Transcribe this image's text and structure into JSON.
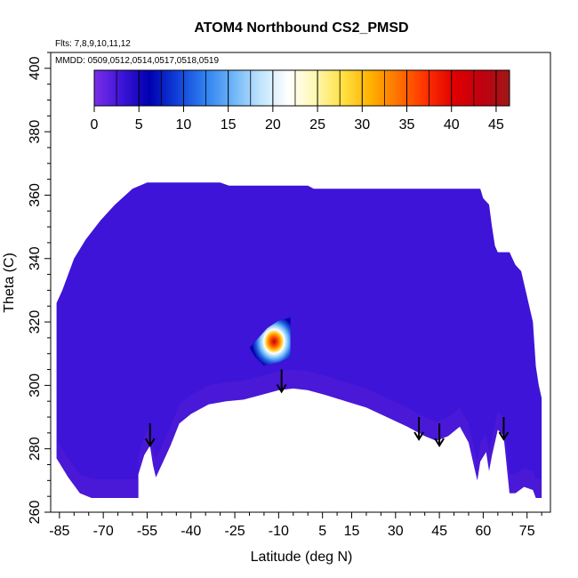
{
  "chart_data": {
    "type": "heatmap",
    "title": "ATOM4 Northbound CS2_PMSD",
    "subtitle_flights": "Flts: 7,8,9,10,11,12",
    "subtitle_dates": "MMDD: 0509,0512,0514,0517,0518,0519",
    "xlabel": "Latitude (deg N)",
    "ylabel": "Theta (C)",
    "xlim": [
      -88,
      83
    ],
    "ylim": [
      260,
      405
    ],
    "x_ticks": [
      -85,
      -70,
      -55,
      -40,
      -25,
      -10,
      5,
      15,
      30,
      45,
      60,
      75
    ],
    "x_tick_labels": [
      "-85",
      "-70",
      "-55",
      "-40",
      "-25",
      "-10",
      "5",
      "15",
      "30",
      "45",
      "60",
      "75"
    ],
    "y_ticks": [
      260,
      280,
      300,
      320,
      340,
      360,
      380,
      400
    ],
    "y_tick_labels": [
      "260",
      "280",
      "300",
      "320",
      "340",
      "360",
      "380",
      "400"
    ],
    "colorbar": {
      "range": [
        0,
        46.5
      ],
      "ticks": [
        0,
        5,
        10,
        15,
        20,
        25,
        30,
        35,
        40,
        45
      ],
      "tick_labels": [
        "0",
        "5",
        "10",
        "15",
        "20",
        "25",
        "30",
        "35",
        "40",
        "45"
      ],
      "colors": [
        "#7a2ee8",
        "#3d14d8",
        "#0000b0",
        "#1040d8",
        "#2f80f0",
        "#6cb4f8",
        "#c0e4fc",
        "#ffffff",
        "#fff8b0",
        "#ffe040",
        "#ffb000",
        "#ff7000",
        "#ff3000",
        "#e00000",
        "#c00010",
        "#a01818"
      ]
    },
    "background_value": 2,
    "domain_top": [
      {
        "lat": -86,
        "theta": 326
      },
      {
        "lat": -84,
        "theta": 330
      },
      {
        "lat": -80,
        "theta": 340
      },
      {
        "lat": -76,
        "theta": 346
      },
      {
        "lat": -71,
        "theta": 352
      },
      {
        "lat": -66,
        "theta": 357
      },
      {
        "lat": -60,
        "theta": 362
      },
      {
        "lat": -55,
        "theta": 364
      },
      {
        "lat": -30,
        "theta": 364
      },
      {
        "lat": -27,
        "theta": 363
      },
      {
        "lat": 0,
        "theta": 363
      },
      {
        "lat": 2,
        "theta": 362
      },
      {
        "lat": 59,
        "theta": 362
      },
      {
        "lat": 60,
        "theta": 359
      },
      {
        "lat": 62,
        "theta": 357
      },
      {
        "lat": 63,
        "theta": 350
      },
      {
        "lat": 64,
        "theta": 344
      },
      {
        "lat": 65,
        "theta": 342
      },
      {
        "lat": 69,
        "theta": 342
      },
      {
        "lat": 71,
        "theta": 338
      },
      {
        "lat": 73,
        "theta": 336
      },
      {
        "lat": 75,
        "theta": 328
      },
      {
        "lat": 77,
        "theta": 320
      },
      {
        "lat": 78,
        "theta": 306
      },
      {
        "lat": 79,
        "theta": 300
      },
      {
        "lat": 80,
        "theta": 296
      }
    ],
    "domain_bottom": [
      {
        "lat": -86,
        "theta": 277
      },
      {
        "lat": -82,
        "theta": 271
      },
      {
        "lat": -78,
        "theta": 266
      },
      {
        "lat": -74,
        "theta": 264.5
      },
      {
        "lat": -58,
        "theta": 264.5
      },
      {
        "lat": -58,
        "theta": 272
      },
      {
        "lat": -56,
        "theta": 278
      },
      {
        "lat": -54,
        "theta": 281
      },
      {
        "lat": -53,
        "theta": 275
      },
      {
        "lat": -52,
        "theta": 271
      },
      {
        "lat": -50,
        "theta": 275
      },
      {
        "lat": -47,
        "theta": 281
      },
      {
        "lat": -44,
        "theta": 288
      },
      {
        "lat": -40,
        "theta": 291
      },
      {
        "lat": -34,
        "theta": 294
      },
      {
        "lat": -28,
        "theta": 295
      },
      {
        "lat": -22,
        "theta": 295.5
      },
      {
        "lat": -16,
        "theta": 297
      },
      {
        "lat": -10,
        "theta": 298.5
      },
      {
        "lat": -5,
        "theta": 299
      },
      {
        "lat": 0,
        "theta": 298.5
      },
      {
        "lat": 6,
        "theta": 297
      },
      {
        "lat": 13,
        "theta": 295
      },
      {
        "lat": 20,
        "theta": 293
      },
      {
        "lat": 27,
        "theta": 290
      },
      {
        "lat": 34,
        "theta": 287
      },
      {
        "lat": 40,
        "theta": 284
      },
      {
        "lat": 44,
        "theta": 282.5
      },
      {
        "lat": 48,
        "theta": 284
      },
      {
        "lat": 52,
        "theta": 287
      },
      {
        "lat": 55,
        "theta": 282
      },
      {
        "lat": 57,
        "theta": 274
      },
      {
        "lat": 58,
        "theta": 270
      },
      {
        "lat": 59,
        "theta": 276
      },
      {
        "lat": 61,
        "theta": 279
      },
      {
        "lat": 62,
        "theta": 273
      },
      {
        "lat": 63,
        "theta": 278
      },
      {
        "lat": 65,
        "theta": 286
      },
      {
        "lat": 67,
        "theta": 284
      },
      {
        "lat": 69,
        "theta": 266
      },
      {
        "lat": 71,
        "theta": 266
      },
      {
        "lat": 74,
        "theta": 268
      },
      {
        "lat": 77,
        "theta": 267
      },
      {
        "lat": 78,
        "theta": 264.5
      },
      {
        "lat": 80,
        "theta": 264.5
      },
      {
        "lat": 80,
        "theta": 296
      }
    ],
    "hotspot": {
      "lat": -9,
      "theta": 313,
      "peak_value": 42
    },
    "arrows": [
      {
        "lat": -54,
        "theta_from": 288,
        "theta_to": 281
      },
      {
        "lat": -9,
        "theta_from": 305,
        "theta_to": 298
      },
      {
        "lat": 38,
        "theta_from": 290,
        "theta_to": 283
      },
      {
        "lat": 45,
        "theta_from": 288,
        "theta_to": 281
      },
      {
        "lat": 67,
        "theta_from": 290,
        "theta_to": 283
      }
    ]
  }
}
